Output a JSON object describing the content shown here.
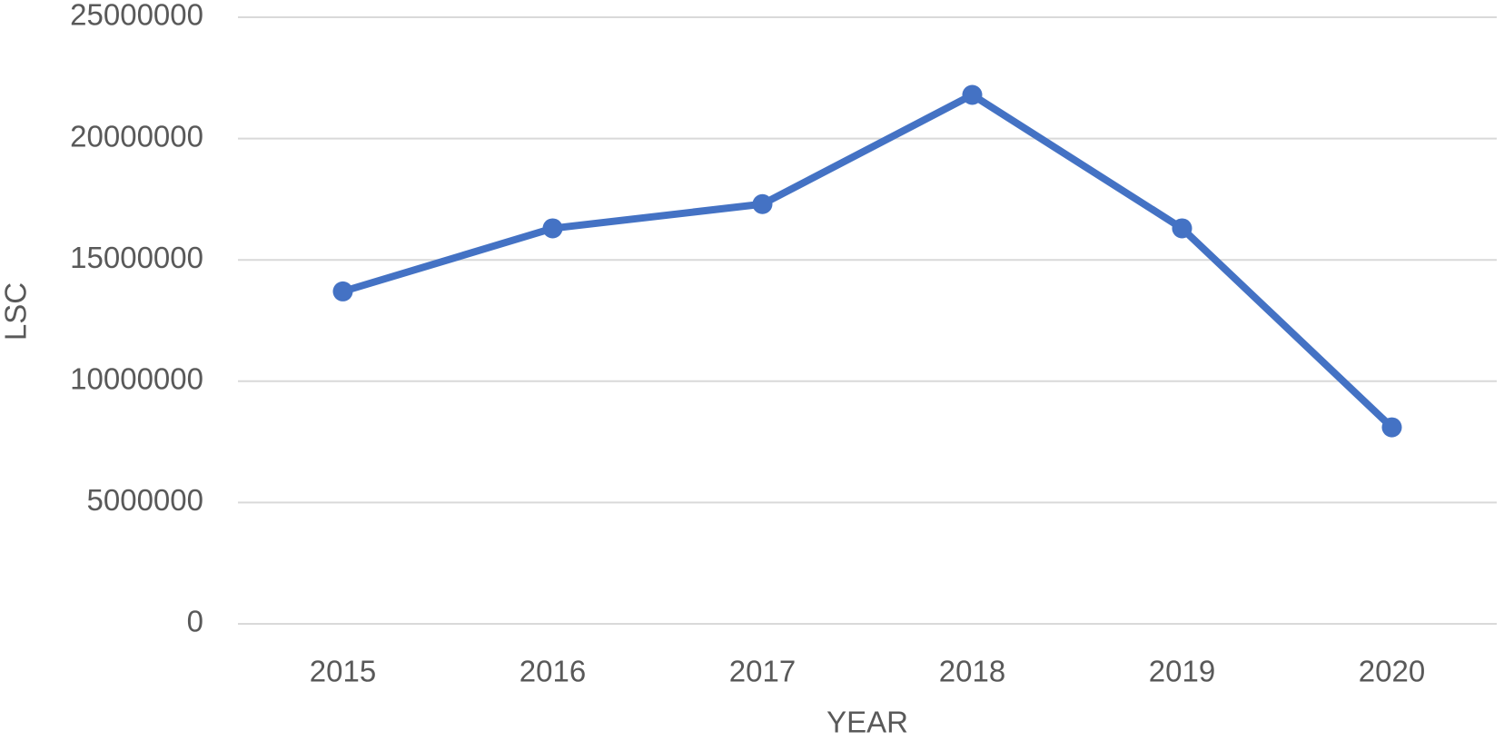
{
  "chart_data": {
    "type": "line",
    "categories": [
      "2015",
      "2016",
      "2017",
      "2018",
      "2019",
      "2020"
    ],
    "series": [
      {
        "name": "LSC",
        "color": "#4472c4",
        "values": [
          13700000,
          16300000,
          17300000,
          21800000,
          16300000,
          8100000
        ]
      }
    ],
    "x_label": "YEAR",
    "y_label": "LSC",
    "ylim": [
      0,
      25000000
    ],
    "yticks": [
      0,
      5000000,
      10000000,
      15000000,
      20000000,
      25000000
    ],
    "grid": true
  }
}
